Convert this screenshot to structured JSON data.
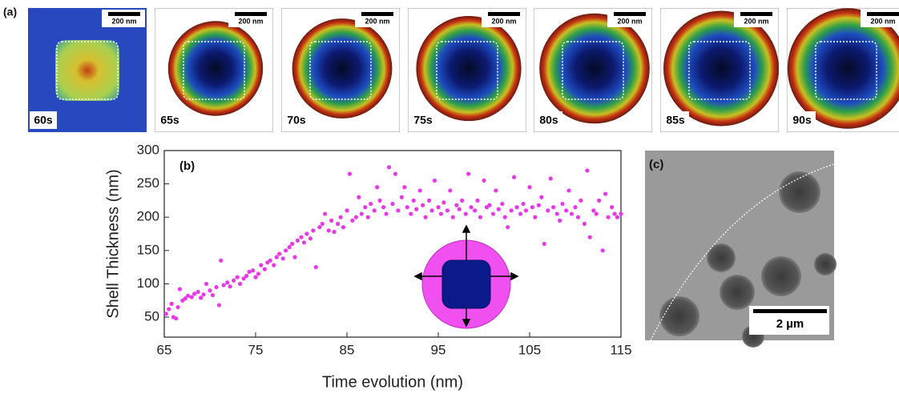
{
  "panel_labels": [
    "(a)",
    "(b)",
    "(c)"
  ],
  "micrographs": [
    {
      "time": "60s",
      "scale_bar": "200 nm"
    },
    {
      "time": "65s",
      "scale_bar": "200 nm"
    },
    {
      "time": "70s",
      "scale_bar": "200 nm"
    },
    {
      "time": "75s",
      "scale_bar": "200 nm"
    },
    {
      "time": "80s",
      "scale_bar": "200 nm"
    },
    {
      "time": "85s",
      "scale_bar": "200 nm"
    },
    {
      "time": "90s",
      "scale_bar": "200 nm"
    }
  ],
  "tem_scale_bar": "2 µm",
  "chart_data": {
    "type": "scatter",
    "x_label": "Time evolution (nm)",
    "y_label": "Shell Thickness (nm)",
    "color": "#e838e8",
    "xlim": [
      65,
      115
    ],
    "ylim": [
      20,
      300
    ],
    "xticks": [
      65,
      75,
      85,
      95,
      105,
      115
    ],
    "yticks": [
      50,
      100,
      150,
      200,
      250,
      300
    ],
    "x": [
      65.2,
      65.5,
      65.8,
      66.0,
      66.3,
      66.5,
      66.7,
      67.0,
      67.3,
      67.6,
      68.0,
      68.3,
      68.7,
      69.0,
      69.3,
      69.6,
      70.0,
      70.3,
      70.7,
      71.0,
      71.2,
      71.5,
      71.9,
      72.2,
      72.6,
      73.0,
      73.3,
      73.7,
      74.0,
      74.3,
      74.7,
      75.0,
      75.3,
      75.6,
      76.0,
      76.3,
      76.6,
      77.0,
      77.3,
      77.6,
      78.0,
      78.3,
      78.7,
      79.0,
      79.3,
      79.6,
      80.0,
      80.3,
      80.6,
      81.0,
      81.3,
      81.6,
      82.0,
      82.3,
      82.6,
      83.0,
      83.3,
      83.6,
      84.0,
      84.3,
      84.6,
      85.0,
      85.3,
      85.6,
      86.0,
      86.3,
      86.6,
      87.0,
      87.3,
      87.6,
      88.0,
      88.3,
      88.6,
      89.0,
      89.3,
      89.6,
      90.0,
      90.3,
      90.6,
      91.0,
      91.3,
      91.6,
      92.0,
      92.3,
      92.6,
      93.0,
      93.3,
      93.6,
      94.0,
      94.3,
      94.6,
      95.0,
      95.3,
      95.6,
      96.0,
      96.3,
      96.6,
      97.0,
      97.3,
      97.6,
      98.0,
      98.3,
      98.6,
      99.0,
      99.3,
      99.6,
      100.0,
      100.3,
      100.6,
      101.0,
      101.3,
      101.6,
      102.0,
      102.3,
      102.6,
      103.0,
      103.3,
      103.6,
      104.0,
      104.3,
      104.6,
      105.0,
      105.3,
      105.6,
      106.0,
      106.3,
      106.6,
      107.0,
      107.3,
      107.6,
      108.0,
      108.3,
      108.6,
      109.0,
      109.3,
      109.6,
      110.0,
      110.3,
      110.6,
      111.0,
      111.3,
      111.6,
      112.0,
      112.3,
      112.6,
      113.0,
      113.3,
      113.6,
      114.0,
      114.3,
      114.6,
      115.0
    ],
    "values": [
      55,
      62,
      70,
      50,
      48,
      65,
      92,
      75,
      78,
      82,
      80,
      85,
      88,
      79,
      84,
      100,
      90,
      83,
      95,
      68,
      135,
      98,
      102,
      96,
      105,
      110,
      100,
      108,
      112,
      118,
      120,
      110,
      115,
      128,
      122,
      132,
      135,
      128,
      140,
      145,
      138,
      150,
      155,
      160,
      140,
      165,
      170,
      162,
      175,
      168,
      180,
      125,
      185,
      190,
      205,
      180,
      195,
      178,
      190,
      200,
      185,
      210,
      265,
      195,
      200,
      230,
      205,
      215,
      200,
      220,
      210,
      245,
      225,
      215,
      205,
      275,
      220,
      265,
      210,
      230,
      245,
      215,
      205,
      225,
      212,
      240,
      218,
      200,
      225,
      210,
      255,
      215,
      205,
      222,
      210,
      240,
      200,
      218,
      212,
      225,
      205,
      265,
      215,
      210,
      225,
      200,
      255,
      215,
      218,
      205,
      240,
      212,
      220,
      200,
      185,
      210,
      260,
      215,
      205,
      220,
      210,
      245,
      215,
      200,
      218,
      230,
      160,
      210,
      258,
      215,
      205,
      195,
      220,
      210,
      240,
      205,
      215,
      200,
      225,
      190,
      270,
      170,
      210,
      205,
      225,
      150,
      235,
      200,
      215,
      205,
      200,
      205
    ]
  }
}
